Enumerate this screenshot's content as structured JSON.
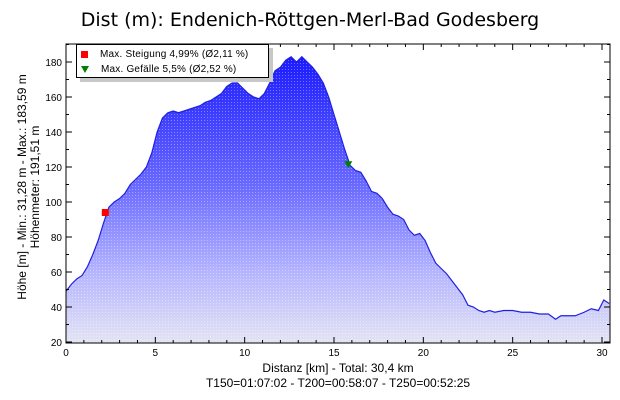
{
  "chart_data": {
    "type": "area",
    "title": "Dist (m): Endenich-Röttgen-Merl-Bad Godesberg",
    "xlabel": "Distanz [km] - Total: 30,4 km",
    "xlabel2": "T150=01:07:02 - T200=00:58:07 - T250=00:52:25",
    "ylabel": "Höhe [m] - Min.: 31,28 m - Max.: 183,59 m",
    "ylabel2": "Höhenmeter: 191,51 m",
    "xlim": [
      0,
      30.4
    ],
    "ylim": [
      20,
      190
    ],
    "x_ticks": [
      "0",
      "5",
      "10",
      "15",
      "20",
      "25",
      "30"
    ],
    "y_ticks": [
      "20",
      "40",
      "60",
      "80",
      "100",
      "120",
      "140",
      "160",
      "180"
    ],
    "grid": false,
    "legend_position": "top-left",
    "legend": [
      {
        "label": "Max. Steigung 4,99% (Ø2,11 %)",
        "marker": "square",
        "color": "#ff0000"
      },
      {
        "label": "Max. Gefälle 5,5% (Ø2,52 %)",
        "marker": "triangle-down",
        "color": "#008000"
      }
    ],
    "markers": [
      {
        "name": "max-steigung",
        "x": 2.2,
        "y": 94
      },
      {
        "name": "max-gefaelle",
        "x": 15.8,
        "y": 121
      }
    ],
    "series": [
      {
        "name": "Höhe",
        "color": "#2020e0",
        "x": [
          0,
          0.3,
          0.6,
          0.9,
          1.2,
          1.5,
          1.8,
          2.1,
          2.4,
          2.7,
          3.0,
          3.3,
          3.6,
          3.9,
          4.2,
          4.5,
          4.8,
          5.1,
          5.4,
          5.7,
          6.0,
          6.3,
          6.6,
          6.9,
          7.2,
          7.5,
          7.8,
          8.1,
          8.4,
          8.7,
          9.0,
          9.3,
          9.6,
          9.9,
          10.2,
          10.5,
          10.8,
          11.1,
          11.4,
          11.7,
          12.0,
          12.3,
          12.6,
          12.9,
          13.2,
          13.5,
          13.8,
          14.1,
          14.4,
          14.7,
          15.0,
          15.3,
          15.6,
          15.9,
          16.2,
          16.5,
          16.8,
          17.1,
          17.4,
          17.7,
          18.0,
          18.3,
          18.6,
          18.9,
          19.2,
          19.5,
          19.8,
          20.1,
          20.4,
          20.7,
          21.0,
          21.3,
          21.6,
          21.9,
          22.2,
          22.5,
          22.8,
          23.1,
          23.4,
          23.7,
          24.0,
          24.5,
          25.0,
          25.5,
          26.0,
          26.5,
          27.0,
          27.4,
          27.7,
          28.0,
          28.5,
          29.0,
          29.4,
          29.8,
          30.1,
          30.4
        ],
        "y": [
          49,
          53,
          56,
          58,
          63,
          70,
          78,
          88,
          97,
          100,
          102,
          105,
          110,
          113,
          116,
          120,
          128,
          140,
          148,
          151,
          152,
          151,
          152,
          153,
          154,
          155,
          157,
          158,
          160,
          162,
          166,
          168,
          168,
          165,
          162,
          160,
          159,
          162,
          168,
          175,
          177,
          181,
          183,
          180,
          183,
          180,
          177,
          173,
          168,
          160,
          150,
          140,
          130,
          121,
          118,
          117,
          112,
          106,
          105,
          102,
          97,
          93,
          92,
          90,
          84,
          81,
          82,
          78,
          71,
          65,
          62,
          59,
          55,
          51,
          47,
          41,
          40,
          38,
          37,
          38,
          37,
          38,
          38,
          37,
          37,
          36,
          36,
          33,
          35,
          35,
          35,
          37,
          39,
          38,
          44,
          42
        ]
      }
    ]
  }
}
